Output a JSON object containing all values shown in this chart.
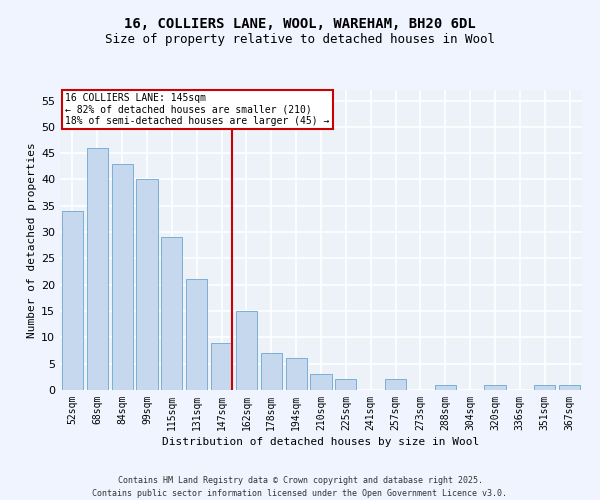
{
  "title1": "16, COLLIERS LANE, WOOL, WAREHAM, BH20 6DL",
  "title2": "Size of property relative to detached houses in Wool",
  "xlabel": "Distribution of detached houses by size in Wool",
  "ylabel": "Number of detached properties",
  "categories": [
    "52sqm",
    "68sqm",
    "84sqm",
    "99sqm",
    "115sqm",
    "131sqm",
    "147sqm",
    "162sqm",
    "178sqm",
    "194sqm",
    "210sqm",
    "225sqm",
    "241sqm",
    "257sqm",
    "273sqm",
    "288sqm",
    "304sqm",
    "320sqm",
    "336sqm",
    "351sqm",
    "367sqm"
  ],
  "values": [
    34,
    46,
    43,
    40,
    29,
    21,
    9,
    15,
    7,
    6,
    3,
    2,
    0,
    2,
    0,
    1,
    0,
    1,
    0,
    1,
    1
  ],
  "bar_color": "#c5d8ee",
  "bar_edge_color": "#7bafd4",
  "property_size_idx": 6,
  "vline_color": "#cc0000",
  "annotation_line1": "16 COLLIERS LANE: 145sqm",
  "annotation_line2": "← 82% of detached houses are smaller (210)",
  "annotation_line3": "18% of semi-detached houses are larger (45) →",
  "annotation_box_color": "#cc0000",
  "ylim": [
    0,
    57
  ],
  "yticks": [
    0,
    5,
    10,
    15,
    20,
    25,
    30,
    35,
    40,
    45,
    50,
    55
  ],
  "bg_color": "#edf2f9",
  "grid_color": "#ffffff",
  "footer": "Contains HM Land Registry data © Crown copyright and database right 2025.\nContains public sector information licensed under the Open Government Licence v3.0.",
  "title1_fontsize": 10,
  "title2_fontsize": 9,
  "axis_label_fontsize": 8,
  "tick_fontsize": 7,
  "annotation_fontsize": 7,
  "footer_fontsize": 6
}
